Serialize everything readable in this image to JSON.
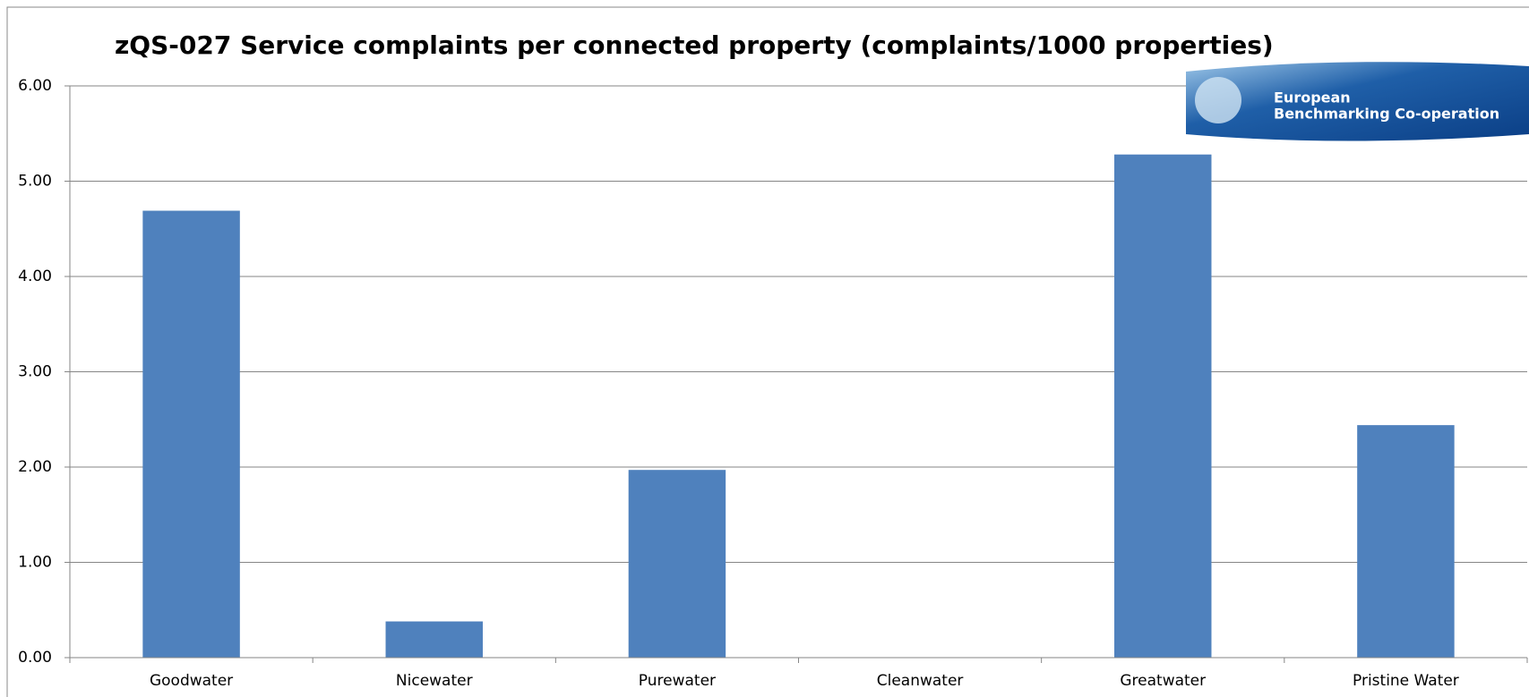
{
  "chart_data": {
    "type": "bar",
    "title": "zQS-027 Service complaints per connected property (complaints/1000 properties)",
    "categories": [
      "Goodwater",
      "Nicewater",
      "Purewater",
      "Cleanwater",
      "Greatwater",
      "Pristine Water"
    ],
    "values": [
      4.69,
      0.38,
      1.97,
      0,
      5.28,
      2.44
    ],
    "color": "#4f81bd",
    "ylim": [
      0,
      6
    ],
    "yticks": [
      {
        "value": 0,
        "label": "0.00"
      },
      {
        "value": 1,
        "label": "1.00"
      },
      {
        "value": 2,
        "label": "2.00"
      },
      {
        "value": 3,
        "label": "3.00"
      },
      {
        "value": 4,
        "label": "4.00"
      },
      {
        "value": 5,
        "label": "5.00"
      },
      {
        "value": 6,
        "label": "6.00"
      }
    ],
    "grid": true
  },
  "logo": {
    "lines": [
      "European",
      "Benchmarking Co-operation"
    ]
  }
}
